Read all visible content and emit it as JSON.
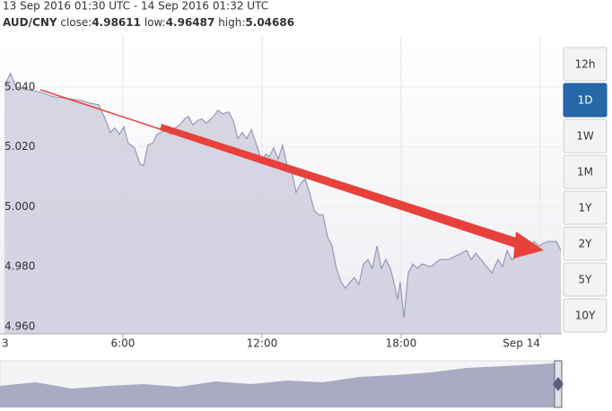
{
  "header": {
    "range": "13 Sep 2016 01:30 UTC - 14 Sep 2016 01:32 UTC",
    "pair": "AUD/CNY",
    "close_label": "close:",
    "close": "4.98611",
    "low_label": "low:",
    "low": "4.96487",
    "high_label": "high:",
    "high": "5.04686"
  },
  "ranges": [
    "12h",
    "1D",
    "1W",
    "1M",
    "1Y",
    "2Y",
    "5Y",
    "10Y"
  ],
  "selected_range": "1D",
  "chart_data": {
    "type": "area",
    "color": "#9799b5",
    "fill": "#c9cadb",
    "grid": true,
    "x": [
      0.89,
      1.16,
      1.39,
      1.86,
      2.44,
      3.02,
      3.6,
      4.18,
      4.57,
      4.96,
      5.27,
      5.46,
      5.65,
      5.85,
      6.04,
      6.23,
      6.5,
      6.74,
      6.89,
      7.08,
      7.28,
      7.47,
      7.67,
      7.86,
      8.05,
      8.25,
      8.44,
      8.67,
      8.83,
      9.02,
      9.21,
      9.41,
      9.6,
      9.91,
      10.1,
      10.3,
      10.57,
      10.76,
      10.96,
      11.15,
      11.34,
      11.54,
      11.81,
      12.0,
      12.16,
      12.31,
      12.51,
      12.7,
      12.89,
      13.09,
      13.28,
      13.47,
      13.67,
      13.86,
      14.05,
      14.25,
      14.44,
      14.63,
      14.83,
      15.02,
      15.21,
      15.41,
      15.6,
      15.8,
      15.99,
      16.18,
      16.38,
      16.57,
      16.76,
      16.96,
      17.15,
      17.34,
      17.54,
      17.73,
      17.85,
      17.96,
      18.12,
      18.31,
      18.51,
      18.7,
      18.89,
      19.28,
      19.67,
      20.05,
      20.44,
      20.83,
      21.02,
      21.22,
      21.6,
      21.91,
      22.18,
      22.38,
      22.57,
      22.77,
      23.15,
      23.54,
      23.73,
      23.93,
      24.31,
      24.7,
      24.89
    ],
    "values": [
      5.0406,
      5.0445,
      5.04,
      5.0391,
      5.0382,
      5.0367,
      5.0361,
      5.0355,
      5.0346,
      5.034,
      5.0287,
      5.0248,
      5.0263,
      5.0242,
      5.0266,
      5.0212,
      5.0197,
      5.0143,
      5.0137,
      5.0206,
      5.0212,
      5.0242,
      5.0248,
      5.0263,
      5.0242,
      5.0263,
      5.0272,
      5.0293,
      5.0301,
      5.0272,
      5.0287,
      5.0293,
      5.0278,
      5.0301,
      5.0322,
      5.031,
      5.0316,
      5.0287,
      5.0227,
      5.0248,
      5.0227,
      5.0257,
      5.0197,
      5.0152,
      5.0176,
      5.0167,
      5.0197,
      5.0158,
      5.0206,
      5.0137,
      5.0122,
      5.0048,
      5.0078,
      5.0093,
      5.0048,
      4.9988,
      4.9973,
      4.9973,
      4.9899,
      4.9869,
      4.9794,
      4.9749,
      4.9728,
      4.9749,
      4.9764,
      4.974,
      4.9809,
      4.9824,
      4.9794,
      4.9869,
      4.9794,
      4.9824,
      4.9794,
      4.9734,
      4.969,
      4.9749,
      4.963,
      4.9779,
      4.9809,
      4.9794,
      4.9809,
      4.98,
      4.9824,
      4.9824,
      4.9839,
      4.9854,
      4.9824,
      4.9845,
      4.9809,
      4.9779,
      4.9824,
      4.98,
      4.9854,
      4.9824,
      4.9839,
      4.986,
      4.9884,
      4.9869,
      4.9884,
      4.9884,
      4.9854
    ],
    "xlim": [
      0.7,
      24.93
    ],
    "xticks": [
      {
        "value": 0,
        "label": "3"
      },
      {
        "value": 6,
        "label": "6:00"
      },
      {
        "value": 12,
        "label": "12:00"
      },
      {
        "value": 18,
        "label": "18:00"
      },
      {
        "value": 24,
        "label": "Sep 14"
      }
    ],
    "ylim": [
      4.9576,
      5.057
    ],
    "yticks": [
      {
        "value": 4.96,
        "label": "4.960"
      },
      {
        "value": 4.98,
        "label": "4.980"
      },
      {
        "value": 5.0,
        "label": "5.000"
      },
      {
        "value": 5.02,
        "label": "5.020"
      },
      {
        "value": 5.04,
        "label": "5.040"
      }
    ]
  }
}
